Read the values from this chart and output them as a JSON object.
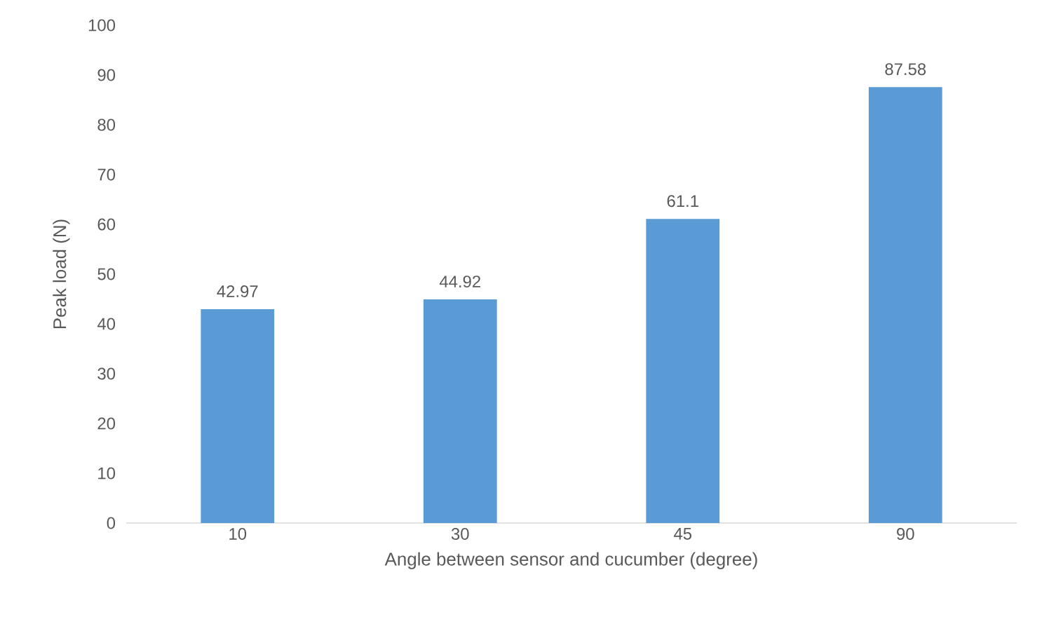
{
  "chart_data": {
    "type": "bar",
    "xlabel": "Angle between sensor and cucumber (degree)",
    "ylabel": "Peak load (N)",
    "categories": [
      "10",
      "30",
      "45",
      "90"
    ],
    "values": [
      42.97,
      44.92,
      61.1,
      87.58
    ],
    "color": "#5b9bd5",
    "ylim": [
      0,
      100
    ],
    "yticks": [
      0,
      10,
      20,
      30,
      40,
      50,
      60,
      70,
      80,
      90,
      100
    ],
    "grid": false,
    "data_labels": true
  }
}
